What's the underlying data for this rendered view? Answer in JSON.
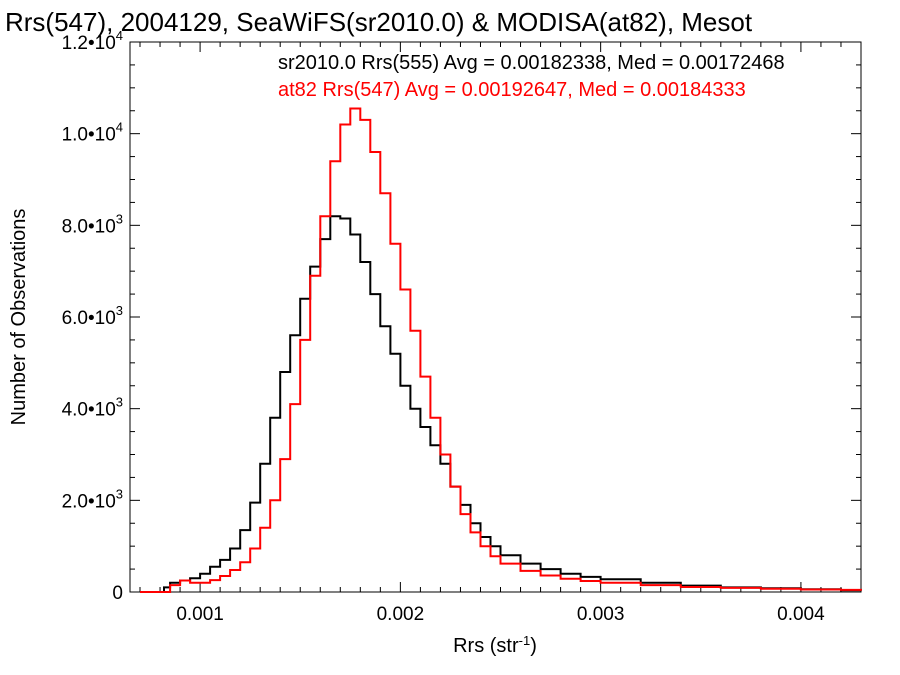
{
  "chart_data": {
    "type": "line",
    "title": "Rrs(547), 2004129, SeaWiFS(sr2010.0) & MODISA(at82), Mesot",
    "xlabel": "Rrs (str",
    "xlabel_sup": "-1",
    "xlabel_end": ")",
    "ylabel": "Number of Observations",
    "xlim": [
      0.00065,
      0.0043
    ],
    "ylim": [
      0,
      12000
    ],
    "grid": false,
    "x_ticks": [
      {
        "value": 0.001,
        "label": "0.001"
      },
      {
        "value": 0.002,
        "label": "0.002"
      },
      {
        "value": 0.003,
        "label": "0.003"
      },
      {
        "value": 0.004,
        "label": "0.004"
      }
    ],
    "y_ticks": [
      {
        "value": 0,
        "label": "0",
        "exp": ""
      },
      {
        "value": 2000,
        "label": "2.0•10",
        "exp": "3"
      },
      {
        "value": 4000,
        "label": "4.0•10",
        "exp": "3"
      },
      {
        "value": 6000,
        "label": "6.0•10",
        "exp": "3"
      },
      {
        "value": 8000,
        "label": "8.0•10",
        "exp": "3"
      },
      {
        "value": 10000,
        "label": "1.0•10",
        "exp": "4"
      },
      {
        "value": 12000,
        "label": "1.2•10",
        "exp": "4"
      }
    ],
    "annotations": [
      {
        "text": "sr2010.0 Rrs(555) Avg = 0.00182338, Med = 0.00172468",
        "color": "#000000"
      },
      {
        "text": "at82 Rrs(547) Avg = 0.00192647, Med = 0.00184333",
        "color": "#ff0000"
      }
    ],
    "series": [
      {
        "color": "#000000",
        "x": [
          0.0007,
          0.00075,
          0.0008,
          0.00082,
          0.00085,
          0.0009,
          0.00095,
          0.001,
          0.00105,
          0.0011,
          0.00115,
          0.0012,
          0.00125,
          0.0013,
          0.00135,
          0.0014,
          0.00145,
          0.0015,
          0.00155,
          0.0016,
          0.00165,
          0.0017,
          0.00175,
          0.0018,
          0.00185,
          0.0019,
          0.00195,
          0.002,
          0.00205,
          0.0021,
          0.00215,
          0.0022,
          0.00225,
          0.0023,
          0.00235,
          0.0024,
          0.00245,
          0.0025,
          0.0026,
          0.0027,
          0.0028,
          0.0029,
          0.003,
          0.0032,
          0.0034,
          0.0036,
          0.0038,
          0.004,
          0.0042,
          0.0043
        ],
        "y": [
          0,
          0,
          0,
          100,
          200,
          250,
          300,
          400,
          550,
          700,
          950,
          1350,
          1950,
          2800,
          3800,
          4800,
          5600,
          6400,
          7100,
          7700,
          8200,
          8150,
          7800,
          7200,
          6500,
          5800,
          5200,
          4500,
          4000,
          3600,
          3200,
          2800,
          2300,
          1900,
          1500,
          1200,
          1000,
          800,
          620,
          500,
          400,
          330,
          280,
          200,
          140,
          100,
          80,
          60,
          40,
          30
        ]
      },
      {
        "color": "#ff0000",
        "x": [
          0.0007,
          0.00075,
          0.0008,
          0.00085,
          0.0009,
          0.00095,
          0.001,
          0.00105,
          0.0011,
          0.00115,
          0.0012,
          0.00125,
          0.0013,
          0.00135,
          0.0014,
          0.00145,
          0.0015,
          0.00155,
          0.0016,
          0.00165,
          0.0017,
          0.00175,
          0.0018,
          0.00185,
          0.0019,
          0.00195,
          0.002,
          0.00205,
          0.0021,
          0.00215,
          0.0022,
          0.00225,
          0.0023,
          0.00235,
          0.0024,
          0.00245,
          0.0025,
          0.0026,
          0.0027,
          0.0028,
          0.0029,
          0.003,
          0.0032,
          0.0034,
          0.0036,
          0.0038,
          0.004,
          0.0042,
          0.0043
        ],
        "y": [
          0,
          0,
          0,
          150,
          250,
          200,
          200,
          260,
          350,
          480,
          650,
          950,
          1400,
          2000,
          2900,
          4100,
          5500,
          6900,
          8200,
          9400,
          10200,
          10550,
          10300,
          9600,
          8700,
          7600,
          6600,
          5700,
          4700,
          3800,
          3000,
          2300,
          1700,
          1300,
          1000,
          780,
          620,
          460,
          360,
          290,
          240,
          200,
          150,
          110,
          90,
          70,
          55,
          45,
          30
        ]
      }
    ]
  }
}
